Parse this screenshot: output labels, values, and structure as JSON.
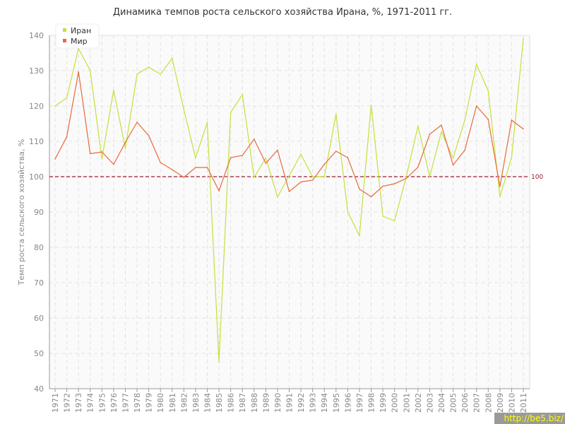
{
  "chart_data": {
    "type": "line",
    "title": "Динамика темпов роста сельского хозяйства Ирана, %, 1971-2011 гг.",
    "xlabel": "",
    "ylabel": "Темп роста сельского хозяйства, %",
    "ylim": [
      40,
      140
    ],
    "yticks": [
      40,
      50,
      60,
      70,
      80,
      90,
      100,
      110,
      120,
      130,
      140
    ],
    "grid": true,
    "legend": "top-left",
    "x": [
      1971,
      1972,
      1973,
      1974,
      1975,
      1976,
      1977,
      1978,
      1979,
      1980,
      1981,
      1982,
      1983,
      1984,
      1985,
      1986,
      1987,
      1988,
      1989,
      1990,
      1991,
      1992,
      1993,
      1994,
      1995,
      1996,
      1997,
      1998,
      1999,
      2000,
      2001,
      2002,
      2003,
      2004,
      2005,
      2006,
      2007,
      2008,
      2009,
      2010,
      2011
    ],
    "series": [
      {
        "name": "Иран",
        "color": "#c5e03a",
        "values": [
          120,
          122.3,
          136.3,
          130,
          105,
          124.5,
          108,
          129,
          131,
          129,
          133.5,
          119,
          105.3,
          115.3,
          47.5,
          118.2,
          123.2,
          99.8,
          105.3,
          94.2,
          100.3,
          106.3,
          100,
          100,
          117.7,
          90,
          83.3,
          120.3,
          88.8,
          87.5,
          100,
          114.3,
          100,
          112.7,
          105.3,
          116,
          131.8,
          124.3,
          94.3,
          105.5,
          139
        ]
      },
      {
        "name": "Мир",
        "color": "#e8693a",
        "values": [
          105,
          111.3,
          129.7,
          106.5,
          107,
          103.5,
          109.7,
          115.4,
          111.6,
          104,
          102,
          99.8,
          102.6,
          102.6,
          96,
          105.4,
          106,
          110.6,
          103.8,
          107.5,
          95.8,
          98.5,
          99,
          103.5,
          107.2,
          105.4,
          96.5,
          94.3,
          97.3,
          98,
          99.5,
          102.7,
          112,
          114.6,
          103.3,
          107.5,
          120,
          116.2,
          97.2,
          116,
          113.5
        ]
      }
    ],
    "reference_line": {
      "value": 100,
      "label": "100",
      "color": "#9b1b30"
    }
  },
  "watermark": "http://be5.biz/"
}
